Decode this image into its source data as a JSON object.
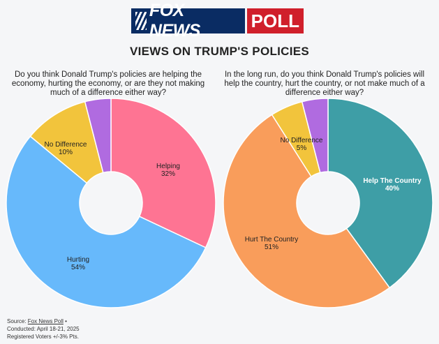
{
  "logo": {
    "fox_news": "FOX NEWS",
    "poll": "POLL"
  },
  "title": "VIEWS ON TRUMP'S POLICIES",
  "chart_data": [
    {
      "type": "pie",
      "question": "Do you think Donald Trump's policies are helping the economy, hurting the economy, or are they not making much of a difference either way?",
      "categories": [
        "Helping",
        "Hurting",
        "No Difference",
        ""
      ],
      "values": [
        32,
        54,
        10,
        4
      ],
      "labels": [
        "32%",
        "54%",
        "10%",
        ""
      ],
      "colors": [
        "#fe7493",
        "#67b9fb",
        "#f2c43c",
        "#b06be0"
      ]
    },
    {
      "type": "pie",
      "question": "In the long run, do you think Donald Trump's policies will help the country, hurt the country, or not make much of a difference either way?",
      "categories": [
        "Help The Country",
        "Hurt The Country",
        "No Difference",
        ""
      ],
      "values": [
        40,
        51,
        5,
        4
      ],
      "labels": [
        "40%",
        "51%",
        "5%",
        ""
      ],
      "colors": [
        "#3e9ea6",
        "#f99d5b",
        "#f2c43c",
        "#b06be0"
      ]
    }
  ],
  "source": {
    "prefix": "Source: ",
    "link": "Fox News Poll",
    "bullet": " •",
    "conducted": "Conducted: April 18-21, 2025",
    "voters": "Registered Voters +/-3% Pts."
  }
}
